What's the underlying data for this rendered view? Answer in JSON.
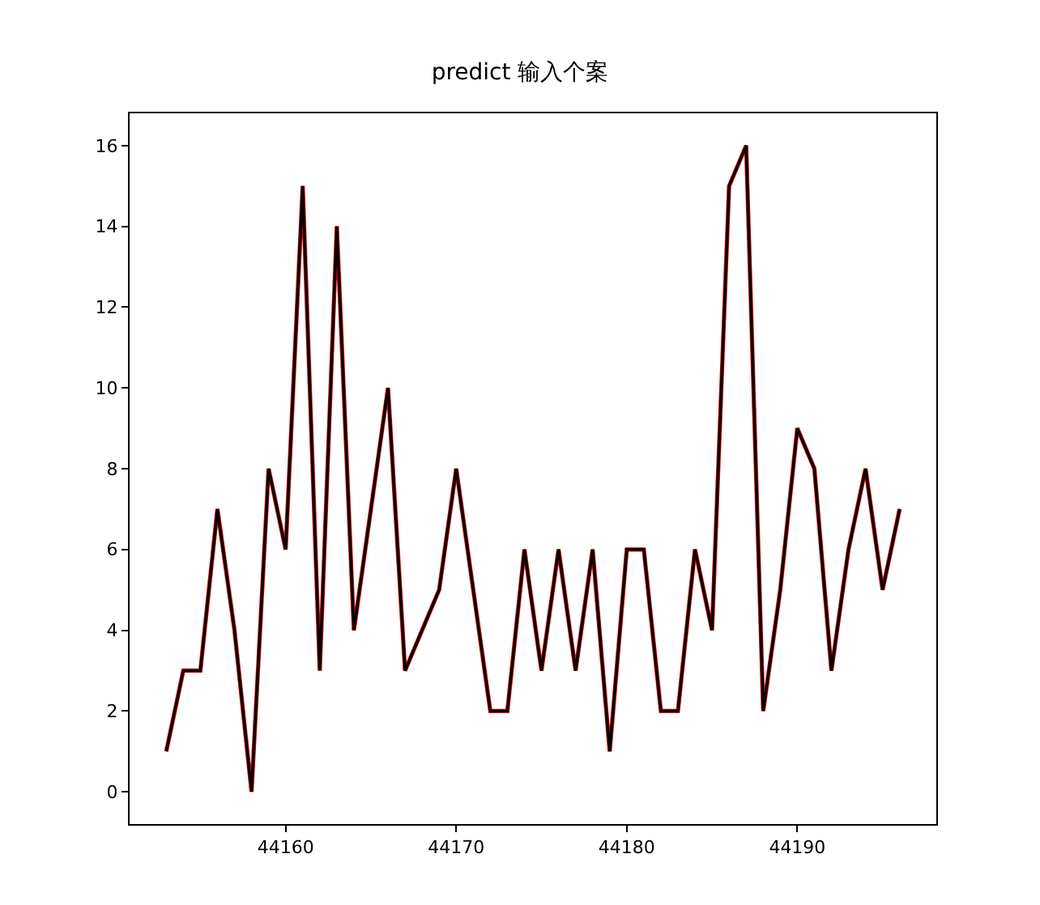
{
  "chart_data": {
    "type": "line",
    "title": "predict 输入个案",
    "x": [
      44153,
      44154,
      44155,
      44156,
      44157,
      44158,
      44159,
      44160,
      44161,
      44162,
      44163,
      44164,
      44165,
      44166,
      44167,
      44169,
      44170,
      44171,
      44172,
      44173,
      44174,
      44175,
      44176,
      44177,
      44178,
      44179,
      44180,
      44181,
      44182,
      44183,
      44184,
      44185,
      44186,
      44187,
      44188,
      44189,
      44190,
      44191,
      44192,
      44193,
      44194,
      44195,
      44196
    ],
    "series": [
      {
        "color": "#ff0000",
        "values": [
          1,
          3,
          3,
          7,
          4,
          0,
          8,
          6,
          15,
          3,
          14,
          4,
          7,
          10,
          3,
          5,
          8,
          5,
          2,
          2,
          6,
          3,
          6,
          3,
          6,
          1,
          6,
          6,
          2,
          2,
          6,
          4,
          15,
          16,
          2,
          5,
          9,
          8,
          3,
          6,
          8,
          5,
          7
        ]
      },
      {
        "color": "#000000",
        "values": [
          1,
          3,
          3,
          7,
          4,
          0,
          8,
          6,
          15,
          3,
          14,
          4,
          7,
          10,
          3,
          5,
          8,
          5,
          2,
          2,
          6,
          3,
          6,
          3,
          6,
          1,
          6,
          6,
          2,
          2,
          6,
          4,
          15,
          16,
          2,
          5,
          9,
          8,
          3,
          6,
          8,
          5,
          7
        ]
      }
    ],
    "xlim": [
      44150.85,
      44198.15
    ],
    "xticks": [
      44160,
      44170,
      44180,
      44190
    ],
    "ylim": [
      -0.8,
      16.8
    ],
    "yticks": [
      0,
      2,
      4,
      6,
      8,
      10,
      12,
      14,
      16
    ],
    "marker": "none",
    "line_style": "solid"
  }
}
